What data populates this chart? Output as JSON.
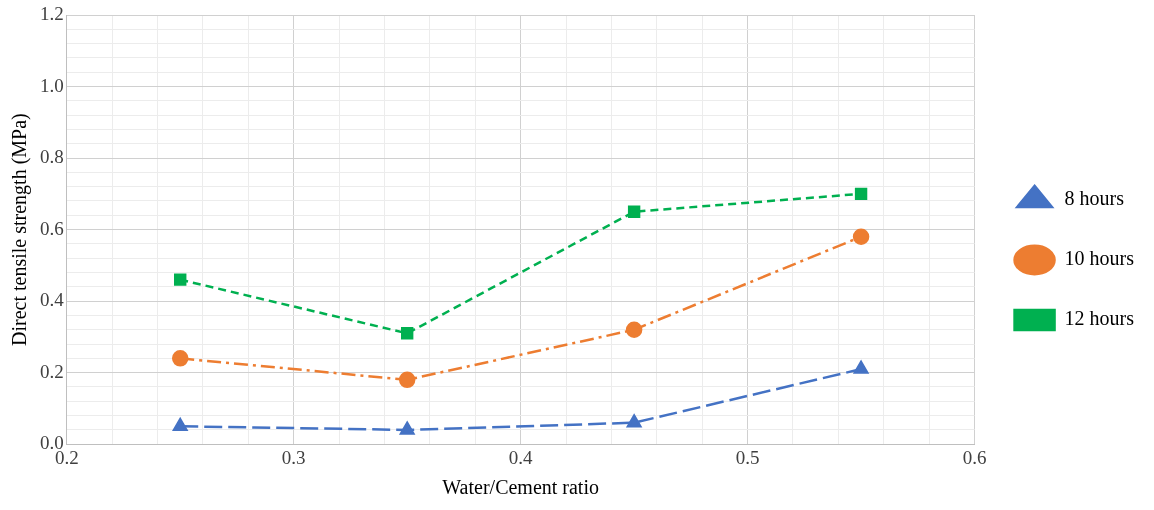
{
  "chart_data": {
    "type": "line",
    "xlabel": "Water/Cement ratio",
    "ylabel": "Direct tensile strength (MPa)",
    "x": [
      0.25,
      0.35,
      0.45,
      0.55
    ],
    "series": [
      {
        "name": "8 hours",
        "color": "#4472c4",
        "values": [
          0.05,
          0.04,
          0.06,
          0.21
        ],
        "marker": "triangle",
        "line_style": "longdash"
      },
      {
        "name": "10 hours",
        "color": "#ed7d31",
        "values": [
          0.24,
          0.18,
          0.32,
          0.58
        ],
        "marker": "circle",
        "line_style": "dashdot"
      },
      {
        "name": "12 hours",
        "color": "#00b050",
        "values": [
          0.46,
          0.31,
          0.65,
          0.7
        ],
        "marker": "square",
        "line_style": "dashed"
      }
    ],
    "xlim": [
      0.2,
      0.6
    ],
    "xticks": [
      0.2,
      {
        "value": 0.22,
        "label": null
      },
      {
        "value": 0.24,
        "label": null
      },
      {
        "value": 0.26,
        "label": null
      },
      {
        "value": 0.28,
        "label": null
      },
      0.3,
      {
        "value": 0.32,
        "label": null
      },
      {
        "value": 0.34,
        "label": null
      },
      {
        "value": 0.36,
        "label": null
      },
      {
        "value": 0.38,
        "label": null
      },
      0.4,
      {
        "value": 0.42,
        "label": null
      },
      {
        "value": 0.44,
        "label": null
      },
      {
        "value": 0.46,
        "label": null
      },
      {
        "value": 0.48,
        "label": null
      },
      0.5,
      {
        "value": 0.52,
        "label": null
      },
      {
        "value": 0.54,
        "label": null
      },
      {
        "value": 0.56,
        "label": null
      },
      {
        "value": 0.58,
        "label": null
      },
      0.6
    ],
    "ylim": [
      0,
      1.2
    ],
    "yticks": [
      {
        "value": 0,
        "label": "0.0"
      },
      {
        "value": 0.04,
        "label": null
      },
      {
        "value": 0.08,
        "label": null
      },
      {
        "value": 0.12,
        "label": null
      },
      {
        "value": 0.16,
        "label": null
      },
      0.2,
      {
        "value": 0.24,
        "label": null
      },
      {
        "value": 0.28,
        "label": null
      },
      {
        "value": 0.32,
        "label": null
      },
      {
        "value": 0.36,
        "label": null
      },
      0.4,
      {
        "value": 0.44,
        "label": null
      },
      {
        "value": 0.48,
        "label": null
      },
      {
        "value": 0.52,
        "label": null
      },
      {
        "value": 0.56,
        "label": null
      },
      0.6,
      {
        "value": 0.64,
        "label": null
      },
      {
        "value": 0.68,
        "label": null
      },
      {
        "value": 0.72,
        "label": null
      },
      {
        "value": 0.76,
        "label": null
      },
      0.8,
      {
        "value": 0.84,
        "label": null
      },
      {
        "value": 0.88,
        "label": null
      },
      {
        "value": 0.92,
        "label": null
      },
      {
        "value": 0.96,
        "label": null
      },
      {
        "value": 1,
        "label": "1.0"
      },
      {
        "value": 1.04,
        "label": null
      },
      {
        "value": 1.08,
        "label": null
      },
      {
        "value": 1.12,
        "label": null
      },
      {
        "value": 1.16,
        "label": null
      },
      1.2
    ],
    "grid": true,
    "legend": "right"
  }
}
